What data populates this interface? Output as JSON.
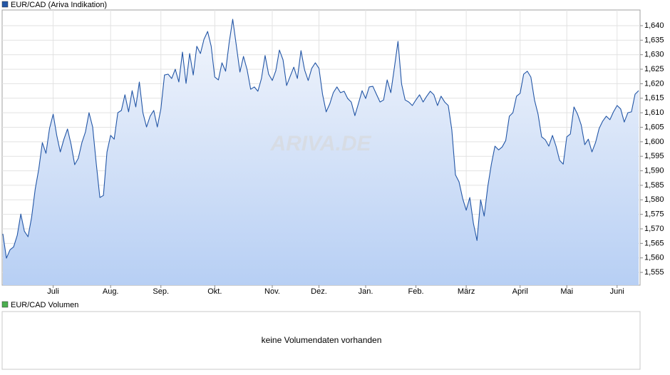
{
  "chart_data": {
    "type": "line",
    "watermark": "ARIVA.DE",
    "series": [
      {
        "name": "EUR/CAD (Ariva Indikation)",
        "color": "#2356a6",
        "values": [
          1.5683,
          1.5599,
          1.5628,
          1.5638,
          1.5678,
          1.5751,
          1.5692,
          1.5673,
          1.5739,
          1.5837,
          1.5906,
          1.5997,
          1.596,
          1.6046,
          1.6095,
          1.6022,
          1.5965,
          1.6009,
          1.6044,
          1.599,
          1.5921,
          1.5943,
          1.5997,
          1.6034,
          1.61,
          1.6051,
          1.5926,
          1.5808,
          1.5815,
          1.5965,
          1.6022,
          1.6009,
          1.61,
          1.6108,
          1.6162,
          1.6103,
          1.6176,
          1.612,
          1.6206,
          1.61,
          1.6051,
          1.6088,
          1.6108,
          1.6051,
          1.6113,
          1.623,
          1.6233,
          1.6218,
          1.625,
          1.6206,
          1.6309,
          1.6201,
          1.6304,
          1.623,
          1.6329,
          1.6304,
          1.6353,
          1.638,
          1.6329,
          1.6223,
          1.6213,
          1.6272,
          1.6243,
          1.6341,
          1.6422,
          1.6331,
          1.624,
          1.6294,
          1.6248,
          1.6181,
          1.6189,
          1.6174,
          1.6218,
          1.6297,
          1.6233,
          1.6211,
          1.6245,
          1.6316,
          1.6282,
          1.6194,
          1.6226,
          1.6257,
          1.6218,
          1.6314,
          1.6248,
          1.6211,
          1.6253,
          1.6272,
          1.6253,
          1.6164,
          1.6103,
          1.613,
          1.6169,
          1.6189,
          1.6169,
          1.6174,
          1.6149,
          1.6137,
          1.609,
          1.6132,
          1.6176,
          1.6149,
          1.6189,
          1.6191,
          1.6164,
          1.6137,
          1.6144,
          1.6213,
          1.6169,
          1.6255,
          1.6346,
          1.6199,
          1.6144,
          1.6137,
          1.6125,
          1.6144,
          1.6162,
          1.6137,
          1.6157,
          1.6174,
          1.6162,
          1.6125,
          1.6157,
          1.6137,
          1.6125,
          1.6041,
          1.5886,
          1.5862,
          1.5805,
          1.5764,
          1.5808,
          1.5719,
          1.566,
          1.58,
          1.5744,
          1.5845,
          1.5923,
          1.5985,
          1.5972,
          1.5982,
          1.6004,
          1.6088,
          1.61,
          1.6157,
          1.6167,
          1.6233,
          1.6243,
          1.6223,
          1.6144,
          1.6095,
          1.6017,
          1.6007,
          1.5985,
          1.6022,
          1.5985,
          1.5936,
          1.5923,
          1.6017,
          1.6027,
          1.612,
          1.6095,
          1.6058,
          1.599,
          1.6009,
          1.5965,
          1.5997,
          1.6046,
          1.6071,
          1.6088,
          1.6076,
          1.6103,
          1.6125,
          1.6113,
          1.6068,
          1.61,
          1.6103,
          1.6164,
          1.6176
        ]
      }
    ],
    "xlim": [
      0,
      177
    ],
    "xticks": [
      {
        "value": 14,
        "label": "Juli"
      },
      {
        "value": 30,
        "label": "Aug."
      },
      {
        "value": 44,
        "label": "Sep."
      },
      {
        "value": 59,
        "label": "Okt."
      },
      {
        "value": 75,
        "label": "Nov."
      },
      {
        "value": 88,
        "label": "Dez."
      },
      {
        "value": 101,
        "label": "Jan."
      },
      {
        "value": 115,
        "label": "Feb."
      },
      {
        "value": 129,
        "label": "März"
      },
      {
        "value": 144,
        "label": "April"
      },
      {
        "value": 157,
        "label": "Mai"
      },
      {
        "value": 171,
        "label": "Juni"
      }
    ],
    "ylim": [
      1.5506,
      1.6454
    ],
    "yticks": [
      {
        "value": 1.555,
        "label": "1,555"
      },
      {
        "value": 1.56,
        "label": "1,560"
      },
      {
        "value": 1.565,
        "label": "1,565"
      },
      {
        "value": 1.57,
        "label": "1,570"
      },
      {
        "value": 1.575,
        "label": "1,575"
      },
      {
        "value": 1.58,
        "label": "1,580"
      },
      {
        "value": 1.585,
        "label": "1,585"
      },
      {
        "value": 1.59,
        "label": "1,590"
      },
      {
        "value": 1.595,
        "label": "1,595"
      },
      {
        "value": 1.6,
        "label": "1,600"
      },
      {
        "value": 1.605,
        "label": "1,605"
      },
      {
        "value": 1.61,
        "label": "1,610"
      },
      {
        "value": 1.615,
        "label": "1,615"
      },
      {
        "value": 1.62,
        "label": "1,620"
      },
      {
        "value": 1.625,
        "label": "1,625"
      },
      {
        "value": 1.63,
        "label": "1,630"
      },
      {
        "value": 1.635,
        "label": "1,635"
      },
      {
        "value": 1.64,
        "label": "1,640"
      }
    ],
    "grid": true
  },
  "volume_panel": {
    "legend": "EUR/CAD Volumen",
    "legend_color": "#4caf50",
    "message": "keine Volumendaten vorhanden"
  }
}
